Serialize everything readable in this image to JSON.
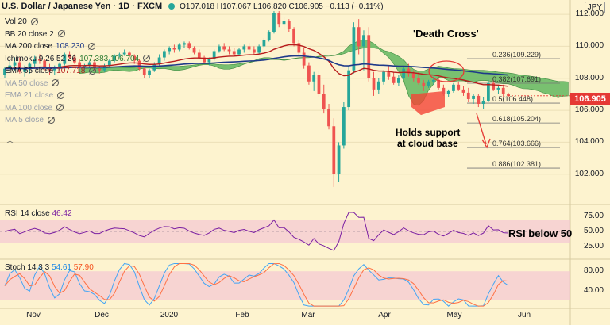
{
  "header": {
    "symbol": "U.S. Dollar / Japanese Yen · 1D · FXCM",
    "ohlc": "O107.018 H107.067 L106.820 C106.905 −0.113 (−0.11%)"
  },
  "currency_badge": "JPY",
  "indicators": [
    {
      "label": "Vol 20",
      "value": "",
      "faded": false,
      "value_color": "#131722"
    },
    {
      "label": "BB 20 close 2",
      "value": "",
      "faded": false,
      "value_color": "#131722"
    },
    {
      "label": "MA 200 close",
      "value": "108.230",
      "faded": false,
      "value_color": "#1e3a8a"
    },
    {
      "label": "Ichimoku 9 26 52 26",
      "value": "107.383  106.704",
      "faded": false,
      "value_color": "#2e7d32"
    },
    {
      "label": "EMA 55 close",
      "value": "107.718",
      "faded": false,
      "value_color": "#b71c1c"
    },
    {
      "label": "MA 50 close",
      "value": "",
      "faded": true,
      "value_color": "#9aa0ab"
    },
    {
      "label": "EMA 21 close",
      "value": "",
      "faded": true,
      "value_color": "#9aa0ab"
    },
    {
      "label": "MA 100 close",
      "value": "",
      "faded": true,
      "value_color": "#9aa0ab"
    },
    {
      "label": "MA 5 close",
      "value": "",
      "faded": true,
      "value_color": "#9aa0ab"
    }
  ],
  "annotations": {
    "death_cross": "'Death Cross'",
    "holds_line1": "Holds support",
    "holds_line2": "at cloud base",
    "rsi_note": "RSI below 50"
  },
  "fib_levels": [
    {
      "label": "0.236(109.229)",
      "price": 109.229
    },
    {
      "label": "0.382(107.691)",
      "price": 107.691
    },
    {
      "label": "0.5(106.448)",
      "price": 106.448
    },
    {
      "label": "0.618(105.204)",
      "price": 105.204
    },
    {
      "label": "0.764(103.666)",
      "price": 103.666
    },
    {
      "label": "0.886(102.381)",
      "price": 102.381
    }
  ],
  "price_axis": [
    "112.000",
    "110.000",
    "108.000",
    "106.000",
    "104.000",
    "102.000"
  ],
  "current_price": "106.905",
  "rsi": {
    "label": "RSI 14 close",
    "value": "46.42",
    "axis": [
      "75.00",
      "50.00",
      "25.00"
    ]
  },
  "stoch": {
    "label": "Stoch 14 3 3",
    "k": "54.61",
    "d": "57.90",
    "axis": [
      "80.00",
      "40.00"
    ]
  },
  "x_axis": [
    "Nov",
    "Dec",
    "2020",
    "Feb",
    "Mar",
    "Apr",
    "May",
    "Jun"
  ],
  "colors": {
    "bg": "#fdf3cf",
    "up": "#26a69a",
    "down": "#ef5350",
    "ma200": "#1e3a8a",
    "ema55": "#b71c1c",
    "cloud_bull": "#4caf50",
    "cloud_bear": "#f44336",
    "rsi_line": "#7b1fa2",
    "stoch_k": "#42a5f5",
    "stoch_d": "#ff7043",
    "band": "#f3c6d3"
  },
  "chart_data": {
    "type": "candlestick",
    "title": "U.S. Dollar / Japanese Yen · 1D · FXCM",
    "ylim": [
      100.5,
      112.5
    ],
    "x_range_months": [
      "Nov",
      "Dec",
      "2020",
      "Feb",
      "Mar",
      "Apr",
      "May",
      "Jun"
    ],
    "key_prices": {
      "close": 106.905,
      "ma200": 108.23,
      "ema55": 107.718,
      "tenkan": 107.383,
      "kijun": 106.704
    },
    "ohlc": [
      [
        108.2,
        108.7,
        108.0,
        108.6
      ],
      [
        108.6,
        109.1,
        108.4,
        108.8
      ],
      [
        108.8,
        109.3,
        108.5,
        109.0
      ],
      [
        109.0,
        109.3,
        108.3,
        108.4
      ],
      [
        108.4,
        108.8,
        108.1,
        108.6
      ],
      [
        108.6,
        109.0,
        108.3,
        108.9
      ],
      [
        108.9,
        109.4,
        108.7,
        109.2
      ],
      [
        109.2,
        109.5,
        108.9,
        109.1
      ],
      [
        109.1,
        109.2,
        108.5,
        108.7
      ],
      [
        108.7,
        108.9,
        108.2,
        108.5
      ],
      [
        108.5,
        108.8,
        108.2,
        108.6
      ],
      [
        108.6,
        109.0,
        108.5,
        108.9
      ],
      [
        108.9,
        109.6,
        108.8,
        109.5
      ],
      [
        109.5,
        109.7,
        109.2,
        109.3
      ],
      [
        109.3,
        109.5,
        108.9,
        109.0
      ],
      [
        109.0,
        109.2,
        108.6,
        108.7
      ],
      [
        108.7,
        108.9,
        108.4,
        108.8
      ],
      [
        108.8,
        109.1,
        108.6,
        109.0
      ],
      [
        109.0,
        109.2,
        108.5,
        108.6
      ],
      [
        108.6,
        108.8,
        108.3,
        108.5
      ],
      [
        108.5,
        108.9,
        108.4,
        108.8
      ],
      [
        108.8,
        109.2,
        108.7,
        109.1
      ],
      [
        109.1,
        109.5,
        109.0,
        109.4
      ],
      [
        109.4,
        109.6,
        109.3,
        109.5
      ],
      [
        109.5,
        109.8,
        109.4,
        109.6
      ],
      [
        109.6,
        109.7,
        109.3,
        109.4
      ],
      [
        109.4,
        109.5,
        108.9,
        109.1
      ],
      [
        109.1,
        109.2,
        108.5,
        108.6
      ],
      [
        108.6,
        108.7,
        108.0,
        108.2
      ],
      [
        108.2,
        108.6,
        108.0,
        108.5
      ],
      [
        108.5,
        109.0,
        108.4,
        108.9
      ],
      [
        108.9,
        109.5,
        108.8,
        109.3
      ],
      [
        109.3,
        109.8,
        109.1,
        109.7
      ],
      [
        109.7,
        110.0,
        109.5,
        109.9
      ],
      [
        109.9,
        110.1,
        109.6,
        109.8
      ],
      [
        109.8,
        110.2,
        109.7,
        110.1
      ],
      [
        110.1,
        110.3,
        109.9,
        110.2
      ],
      [
        110.2,
        110.3,
        109.8,
        109.9
      ],
      [
        109.9,
        110.0,
        109.5,
        109.6
      ],
      [
        109.6,
        109.8,
        109.2,
        109.3
      ],
      [
        109.3,
        109.4,
        108.9,
        109.0
      ],
      [
        109.0,
        109.3,
        108.8,
        109.2
      ],
      [
        109.2,
        109.8,
        109.1,
        109.7
      ],
      [
        109.7,
        110.1,
        109.6,
        110.0
      ],
      [
        110.0,
        110.2,
        109.7,
        109.8
      ],
      [
        109.8,
        110.0,
        109.5,
        109.7
      ],
      [
        109.7,
        109.9,
        109.4,
        109.5
      ],
      [
        109.5,
        109.9,
        109.4,
        109.8
      ],
      [
        109.8,
        110.1,
        109.6,
        110.0
      ],
      [
        110.0,
        110.2,
        109.7,
        109.8
      ],
      [
        109.8,
        110.0,
        109.5,
        109.6
      ],
      [
        109.6,
        110.1,
        109.5,
        110.0
      ],
      [
        110.0,
        110.5,
        109.9,
        110.4
      ],
      [
        110.4,
        111.0,
        110.3,
        110.9
      ],
      [
        110.9,
        112.2,
        110.8,
        112.1
      ],
      [
        112.1,
        112.2,
        111.2,
        111.4
      ],
      [
        111.4,
        111.8,
        111.0,
        111.6
      ],
      [
        111.6,
        111.7,
        110.9,
        111.1
      ],
      [
        111.1,
        111.2,
        110.0,
        110.2
      ],
      [
        110.2,
        110.4,
        109.4,
        109.6
      ],
      [
        109.6,
        109.9,
        108.6,
        108.8
      ],
      [
        108.8,
        109.0,
        107.6,
        107.8
      ],
      [
        107.8,
        108.4,
        107.2,
        108.2
      ],
      [
        108.2,
        108.5,
        106.8,
        107.0
      ],
      [
        107.0,
        107.6,
        105.8,
        106.1
      ],
      [
        106.1,
        106.4,
        104.8,
        105.0
      ],
      [
        105.0,
        105.5,
        101.2,
        102.0
      ],
      [
        102.0,
        104.0,
        101.5,
        103.8
      ],
      [
        103.8,
        106.5,
        103.6,
        106.2
      ],
      [
        106.2,
        108.8,
        106.0,
        108.5
      ],
      [
        108.5,
        111.5,
        108.3,
        111.2
      ],
      [
        111.2,
        111.7,
        109.5,
        110.0
      ],
      [
        110.0,
        111.0,
        108.5,
        110.7
      ],
      [
        110.7,
        111.2,
        107.8,
        108.0
      ],
      [
        108.0,
        108.4,
        106.9,
        107.3
      ],
      [
        107.3,
        108.0,
        107.0,
        107.8
      ],
      [
        107.8,
        108.5,
        107.6,
        108.4
      ],
      [
        108.4,
        108.8,
        107.9,
        108.1
      ],
      [
        108.1,
        108.4,
        107.6,
        107.7
      ],
      [
        107.7,
        108.2,
        107.5,
        108.0
      ],
      [
        108.0,
        108.7,
        107.9,
        108.6
      ],
      [
        108.6,
        108.9,
        108.1,
        108.3
      ],
      [
        108.3,
        108.5,
        107.8,
        108.0
      ],
      [
        108.0,
        108.4,
        107.6,
        107.7
      ],
      [
        107.7,
        107.9,
        107.2,
        107.5
      ],
      [
        107.5,
        107.9,
        107.4,
        107.8
      ],
      [
        107.8,
        108.1,
        107.6,
        107.9
      ],
      [
        107.9,
        108.0,
        107.3,
        107.4
      ],
      [
        107.4,
        107.6,
        106.9,
        107.0
      ],
      [
        107.0,
        107.3,
        106.8,
        107.2
      ],
      [
        107.2,
        107.7,
        107.1,
        107.6
      ],
      [
        107.6,
        107.8,
        107.2,
        107.3
      ],
      [
        107.3,
        107.5,
        106.9,
        107.1
      ],
      [
        107.1,
        107.4,
        106.5,
        106.7
      ],
      [
        106.7,
        107.0,
        106.4,
        106.9
      ],
      [
        106.9,
        107.0,
        106.2,
        106.4
      ],
      [
        106.4,
        106.8,
        106.1,
        106.6
      ],
      [
        106.6,
        107.9,
        106.5,
        107.7
      ],
      [
        107.7,
        107.9,
        107.2,
        107.3
      ],
      [
        107.3,
        107.6,
        107.0,
        107.4
      ],
      [
        107.4,
        107.6,
        106.8,
        107.0
      ],
      [
        107.0,
        107.1,
        106.8,
        106.9
      ]
    ]
  }
}
